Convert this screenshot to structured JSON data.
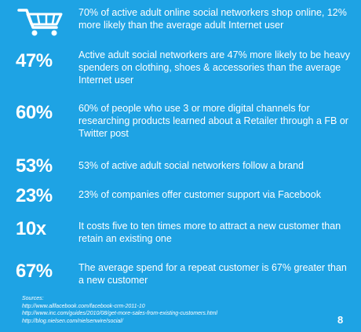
{
  "stats": [
    {
      "value": "",
      "icon": "shopping-cart-icon",
      "lines": [
        "70% of active adult online social networkers shop online, 12%",
        "more likely than the average adult Internet user"
      ]
    },
    {
      "value": "47%",
      "lines": [
        "Active adult social networkers are 47% more likely to be heavy",
        "spenders on clothing, shoes & accessories than the average",
        "Internet user"
      ]
    },
    {
      "value": "60%",
      "lines": [
        "60% of people who use 3 or more digital channels for",
        "researching products learned about a Retailer through a FB or",
        "Twitter post"
      ]
    },
    {
      "value": "53%",
      "lines": [
        "53% of active adult social networkers follow a brand"
      ]
    },
    {
      "value": "23%",
      "lines": [
        "23% of companies offer customer support via Facebook"
      ]
    },
    {
      "value": "10x",
      "lines": [
        "It costs five to ten times more to attract a new customer than",
        "retain an existing one"
      ]
    },
    {
      "value": "67%",
      "lines": [
        "The average spend for a repeat customer is 67% greater than",
        "a new customer"
      ]
    }
  ],
  "sources": {
    "heading": "Sources:",
    "links": [
      "http://www.allfacebook.com/facebook-crm-2011-10",
      "http://www.inc.com/guides/2010/08/get-more-sales-from-existing-customers.html",
      "http://blog.nielsen.com/nielsenwire/social/"
    ]
  },
  "page_number": "8",
  "colors": {
    "background": "#1ea3e4",
    "text": "#ffffff"
  }
}
